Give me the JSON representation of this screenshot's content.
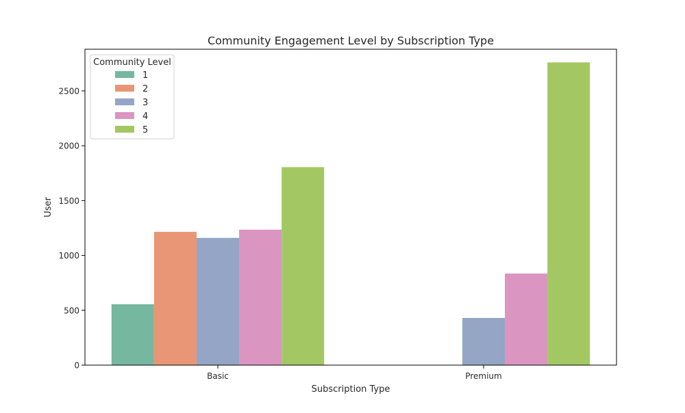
{
  "chart_data": {
    "type": "bar",
    "title": "Community Engagement Level by Subscription Type",
    "xlabel": "Subscription Type",
    "ylabel": "User",
    "categories": [
      "Basic",
      "Premium"
    ],
    "ylim": [
      0,
      2880
    ],
    "yticks": [
      0,
      500,
      1000,
      1500,
      2000,
      2500
    ],
    "grid": false,
    "legend": {
      "title": "Community Level",
      "placement": "top-left"
    },
    "series": [
      {
        "name": "1",
        "color": "#76b7a0",
        "values": [
          555,
          0
        ]
      },
      {
        "name": "2",
        "color": "#e99676",
        "values": [
          1215,
          0
        ]
      },
      {
        "name": "3",
        "color": "#95a5c5",
        "values": [
          1160,
          430
        ]
      },
      {
        "name": "4",
        "color": "#da95c1",
        "values": [
          1235,
          835
        ]
      },
      {
        "name": "5",
        "color": "#a3c863",
        "values": [
          1805,
          2760
        ]
      }
    ]
  }
}
